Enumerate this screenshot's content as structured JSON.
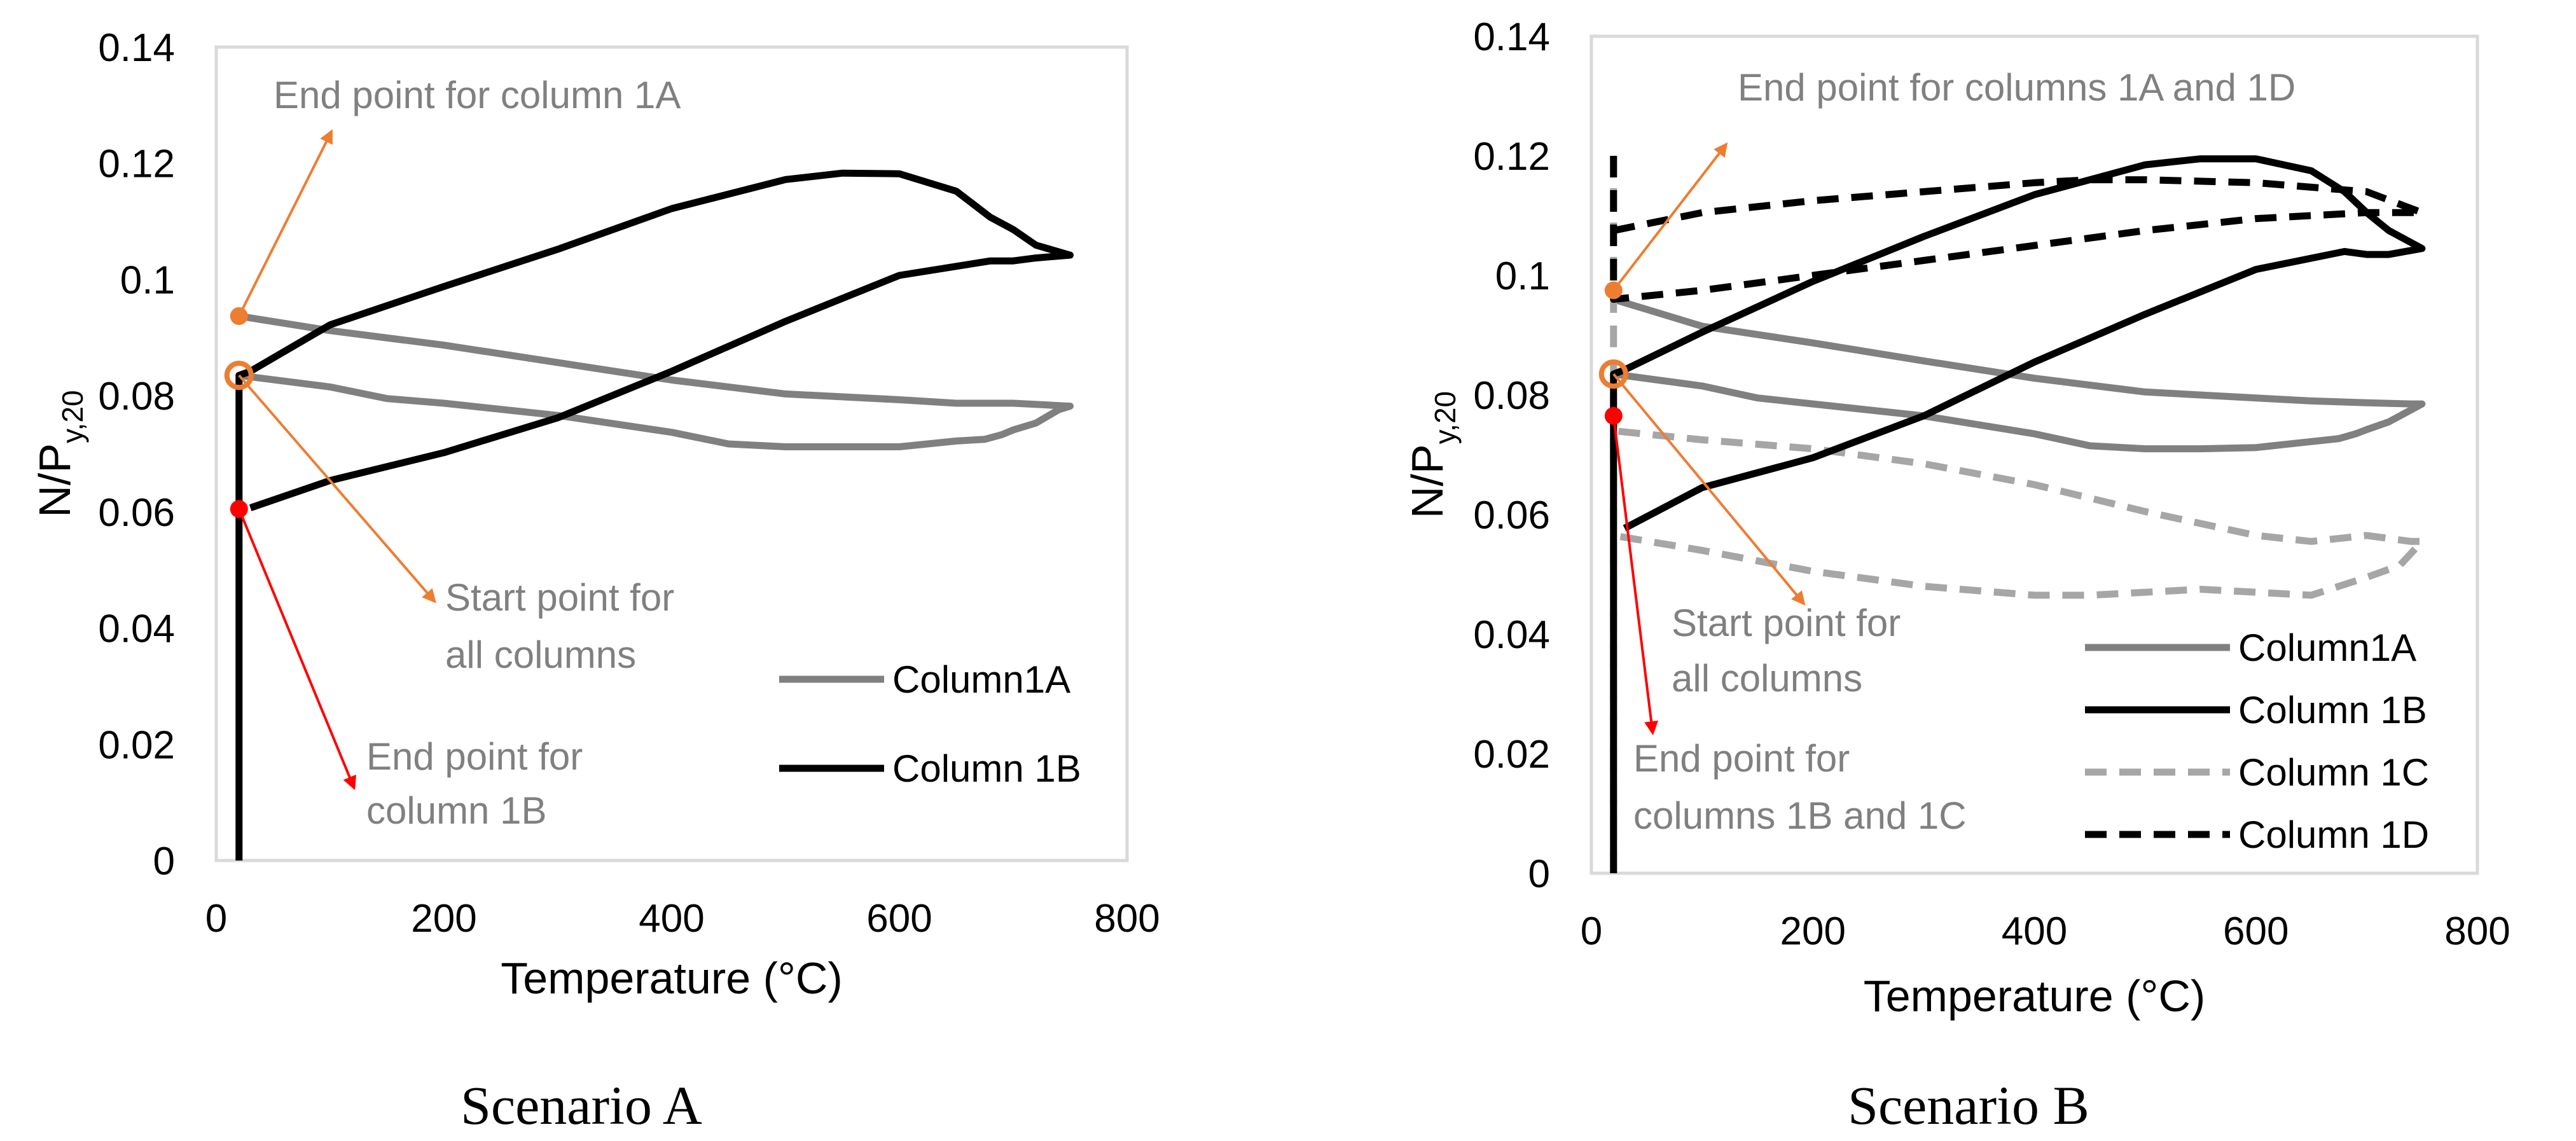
{
  "colors": {
    "frame": "#d9d9d9",
    "orange": "#ed7d31",
    "red": "#ff0000",
    "dark": "#000000",
    "gray": "#808080",
    "lightgray": "#a6a6a6"
  },
  "chart_data": [
    {
      "type": "line",
      "caption": "Scenario A",
      "xlabel": "Temperature (°C)",
      "ylabel": [
        "N/P",
        "y,20"
      ],
      "xlim": [
        0,
        800
      ],
      "ylim": [
        0,
        0.14
      ],
      "xticks": [
        "0",
        "200",
        "400",
        "600",
        "800"
      ],
      "yticks": [
        "0",
        "0.02",
        "0.04",
        "0.06",
        "0.08",
        "0.1",
        "0.12",
        "0.14"
      ],
      "grid": false,
      "legend_placement": "bottom-right",
      "series": [
        {
          "name": "Column1A",
          "style": "solid",
          "color": "#808080",
          "in_legend": true,
          "x": [
            20,
            20,
            100,
            150,
            200,
            300,
            400,
            450,
            500,
            550,
            600,
            650,
            675,
            690,
            700,
            720,
            740,
            750,
            740,
            700,
            650,
            600,
            500,
            400,
            300,
            200,
            100,
            20
          ],
          "y": [
            0.0835,
            0.0835,
            0.0815,
            0.0795,
            0.0787,
            0.0766,
            0.0737,
            0.0717,
            0.0712,
            0.0712,
            0.0712,
            0.0722,
            0.0725,
            0.0733,
            0.0741,
            0.0753,
            0.0776,
            0.0782,
            0.0783,
            0.0787,
            0.0787,
            0.0793,
            0.0803,
            0.0827,
            0.0857,
            0.0887,
            0.0912,
            0.0937
          ]
        },
        {
          "name": "Column 1B",
          "style": "solid",
          "color": "#000000",
          "in_legend": true,
          "x": [
            20,
            20,
            20,
            30,
            100,
            200,
            300,
            400,
            500,
            550,
            600,
            650,
            680,
            700,
            720,
            750,
            720,
            700,
            680,
            600,
            500,
            400,
            300,
            200,
            100,
            30
          ],
          "y": [
            0.0,
            0.0605,
            0.0835,
            0.0842,
            0.0922,
            0.0988,
            0.1052,
            0.1122,
            0.1172,
            0.1183,
            0.1182,
            0.1152,
            0.1107,
            0.1086,
            0.1059,
            0.1042,
            0.1037,
            0.1032,
            0.1032,
            0.1007,
            0.0928,
            0.0842,
            0.0762,
            0.0702,
            0.0654,
            0.0607
          ]
        }
      ],
      "annotations": [
        {
          "text": [
            "End point for column 1A"
          ],
          "marker": "orange",
          "at": [
            20,
            0.0937
          ],
          "arrow_to": [
            100,
            0.125
          ],
          "arrow_color": "#ed7d31"
        },
        {
          "text": [
            "Start point for",
            "all columns"
          ],
          "marker": "orange-ring",
          "at": [
            20,
            0.0835
          ],
          "arrow_to": [
            190,
            0.045
          ],
          "arrow_color": "#ed7d31"
        },
        {
          "text": [
            "End point for",
            "column 1B"
          ],
          "marker": "red",
          "at": [
            20,
            0.0605
          ],
          "arrow_to": [
            120,
            0.013
          ],
          "arrow_color": "#ff0000"
        }
      ]
    },
    {
      "type": "line",
      "caption": "Scenario B",
      "xlabel": "Temperature (°C)",
      "ylabel": [
        "N/P",
        "y,20"
      ],
      "xlim": [
        0,
        800
      ],
      "ylim": [
        0,
        0.14
      ],
      "xticks": [
        "0",
        "200",
        "400",
        "600",
        "800"
      ],
      "yticks": [
        "0",
        "0.02",
        "0.04",
        "0.06",
        "0.08",
        "0.1",
        "0.12",
        "0.14"
      ],
      "grid": false,
      "legend_placement": "bottom-right",
      "series": [
        {
          "name": "Column1A",
          "style": "solid",
          "color": "#808080",
          "in_legend": true,
          "x": [
            20,
            20,
            100,
            150,
            200,
            300,
            400,
            450,
            500,
            550,
            600,
            650,
            675,
            690,
            700,
            720,
            740,
            750,
            740,
            700,
            650,
            600,
            500,
            400,
            300,
            200,
            100,
            20
          ],
          "y": [
            0.0835,
            0.0835,
            0.0815,
            0.0795,
            0.0785,
            0.0765,
            0.0735,
            0.0715,
            0.071,
            0.071,
            0.0712,
            0.0722,
            0.0727,
            0.0735,
            0.0742,
            0.0755,
            0.0775,
            0.0785,
            0.0785,
            0.0787,
            0.079,
            0.0795,
            0.0805,
            0.0828,
            0.0857,
            0.0887,
            0.0915,
            0.096
          ]
        },
        {
          "name": "Column 1B",
          "style": "solid",
          "color": "#000000",
          "in_legend": true,
          "x": [
            20,
            20,
            20,
            30,
            100,
            200,
            300,
            400,
            500,
            550,
            600,
            650,
            680,
            700,
            720,
            750,
            720,
            700,
            680,
            600,
            500,
            400,
            300,
            200,
            100,
            30
          ],
          "y": [
            0.0,
            0.0765,
            0.0835,
            0.0842,
            0.0905,
            0.099,
            0.1065,
            0.1135,
            0.1185,
            0.1195,
            0.1195,
            0.1175,
            0.114,
            0.1105,
            0.1075,
            0.1045,
            0.1035,
            0.1035,
            0.104,
            0.101,
            0.0935,
            0.0855,
            0.0765,
            0.0695,
            0.0645,
            0.0577
          ]
        },
        {
          "name": "Column 1C",
          "style": "dashed",
          "color": "#a6a6a6",
          "in_legend": true,
          "x": [
            20,
            20,
            20,
            100,
            200,
            300,
            400,
            450,
            500,
            550,
            600,
            650,
            700,
            730,
            750,
            740,
            700,
            650,
            600,
            500,
            400,
            300,
            200,
            100,
            20
          ],
          "y": [
            0.0,
            0.0765,
            0.0565,
            0.054,
            0.0505,
            0.048,
            0.0465,
            0.0465,
            0.047,
            0.0475,
            0.047,
            0.0465,
            0.0495,
            0.0515,
            0.0555,
            0.0555,
            0.0565,
            0.0555,
            0.0565,
            0.0605,
            0.065,
            0.0685,
            0.071,
            0.0725,
            0.074
          ]
        },
        {
          "name": "Column 1D",
          "style": "dashed",
          "color": "#000000",
          "in_legend": true,
          "x": [
            20,
            20,
            20,
            100,
            200,
            300,
            400,
            500,
            600,
            700,
            750,
            700,
            600,
            500,
            450,
            400,
            300,
            200,
            100,
            20
          ],
          "y": [
            0.12,
            0.0975,
            0.096,
            0.0975,
            0.1,
            0.1025,
            0.105,
            0.1075,
            0.1095,
            0.1105,
            0.1105,
            0.114,
            0.1155,
            0.116,
            0.116,
            0.1155,
            0.114,
            0.1125,
            0.1105,
            0.1075
          ]
        },
        {
          "name": "",
          "style": "dashed",
          "color": "#a6a6a6",
          "in_legend": false,
          "x": [
            20,
            20
          ],
          "y": [
            0.0765,
            0.12
          ]
        }
      ],
      "annotations": [
        {
          "text": [
            "End point for columns 1A and 1D"
          ],
          "marker": "orange",
          "at": [
            20,
            0.0975
          ],
          "arrow_to": [
            120,
            0.1215
          ],
          "arrow_color": "#ed7d31"
        },
        {
          "text": [
            "Start point for",
            "all columns"
          ],
          "marker": "orange-ring",
          "at": [
            20,
            0.0835
          ],
          "arrow_to": [
            190,
            0.0455
          ],
          "arrow_color": "#ed7d31"
        },
        {
          "text": [
            "End point for",
            "columns 1B and 1C"
          ],
          "marker": "red",
          "at": [
            20,
            0.0765
          ],
          "arrow_to": [
            55,
            0.024
          ],
          "arrow_color": "#ff0000"
        }
      ]
    }
  ]
}
